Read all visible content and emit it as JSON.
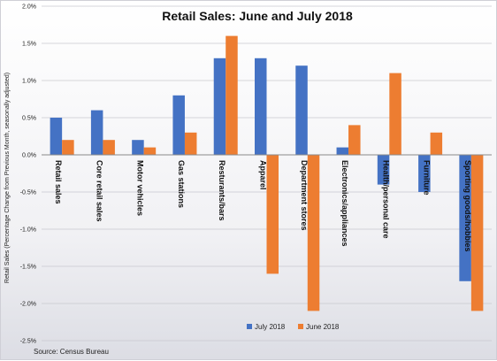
{
  "chart_data": {
    "type": "bar",
    "title": "Retail Sales: June and July 2018",
    "xlabel": "",
    "ylabel": "Retail Sales (Percentage Change from Previous Month, seasonally adjusted)",
    "ylim": [
      -2.5,
      2.0
    ],
    "yticks": [
      2.0,
      1.5,
      1.0,
      0.5,
      0.0,
      -0.5,
      -1.0,
      -1.5,
      -2.0,
      -2.5
    ],
    "ytick_labels": [
      "2.0%",
      "1.5%",
      "1.0%",
      "0.5%",
      "0.0%",
      "-0.5%",
      "-1.0%",
      "-1.5%",
      "-2.0%",
      "-2.5%"
    ],
    "grid": true,
    "legend_position": "bottom-center",
    "categories": [
      "Retail sales",
      "Core retail sales",
      "Motor vehicles",
      "Gas stations",
      "Resturants/bars",
      "Apparel",
      "Department stores",
      "Electronics/appliances",
      "Health/personal care",
      "Furniture",
      "Sporting goods/hobbies"
    ],
    "series": [
      {
        "name": "July 2018",
        "color": "#4472c4",
        "values": [
          0.5,
          0.6,
          0.2,
          0.8,
          1.3,
          1.3,
          1.2,
          0.1,
          -0.4,
          -0.5,
          -1.7
        ]
      },
      {
        "name": "June 2018",
        "color": "#ed7d31",
        "values": [
          0.2,
          0.2,
          0.1,
          0.3,
          1.6,
          -1.6,
          -2.1,
          0.4,
          1.1,
          0.3,
          -2.1
        ]
      }
    ],
    "source": "Source: Census Bureau"
  }
}
